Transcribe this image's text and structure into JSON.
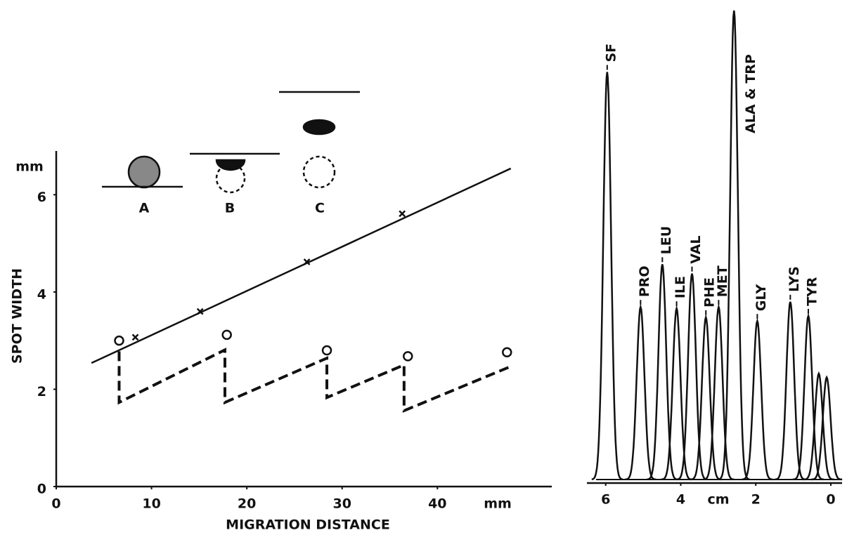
{
  "chart_data": [
    {
      "type": "scatter",
      "y_label": "SPOT WIDTH",
      "x_label": "MIGRATION DISTANCE",
      "y_unit": "mm",
      "x_unit": "mm",
      "xlim": [
        0,
        52
      ],
      "ylim": [
        0,
        6.9
      ],
      "xticks": [
        0,
        10,
        20,
        30,
        40
      ],
      "yticks": [
        0,
        2,
        4,
        6
      ],
      "color": "#111111",
      "series": [
        {
          "marker": "x",
          "x": [
            8.3,
            15.1,
            26.3,
            36.3
          ],
          "values": [
            3.07,
            3.6,
            4.62,
            5.61
          ]
        },
        {
          "marker": "o",
          "x": [
            6.6,
            17.9,
            28.4,
            36.9,
            47.3
          ],
          "values": [
            3.0,
            3.12,
            2.8,
            2.68,
            2.76
          ]
        },
        {
          "marker": "solid",
          "x": [
            3.7,
            47.7
          ],
          "values": [
            2.54,
            6.54
          ]
        },
        {
          "marker": "dashed",
          "x": [
            6.6,
            6.6,
            17.7,
            17.7,
            28.4,
            28.4,
            36.5,
            36.5,
            47.7
          ],
          "values": [
            2.78,
            1.73,
            2.81,
            1.73,
            2.64,
            1.83,
            2.5,
            1.56,
            2.47
          ]
        }
      ],
      "inset_labels": [
        "A",
        "B",
        "C"
      ]
    },
    {
      "type": "peaks",
      "x_unit": "cm",
      "xlim": [
        6.5,
        -0.3
      ],
      "ylim": [
        0,
        100
      ],
      "xticks": [
        6,
        4,
        2,
        0
      ],
      "color": "#111111",
      "x": [
        5.96,
        5.07,
        4.49,
        4.11,
        3.7,
        3.33,
        2.99,
        2.58,
        1.96,
        1.08,
        0.6,
        0.32,
        0.11
      ],
      "values": [
        86.9,
        36.8,
        45.9,
        36.5,
        43.9,
        34.6,
        36.8,
        100,
        33.8,
        37.9,
        34.9,
        22.6,
        21.8
      ],
      "labels": [
        "SF",
        "PRO",
        "LEU",
        "ILE",
        "VAL",
        "PHE",
        "MET",
        "ALA & TRP",
        "GLY",
        "LYS",
        "TYR",
        null,
        null
      ]
    }
  ]
}
